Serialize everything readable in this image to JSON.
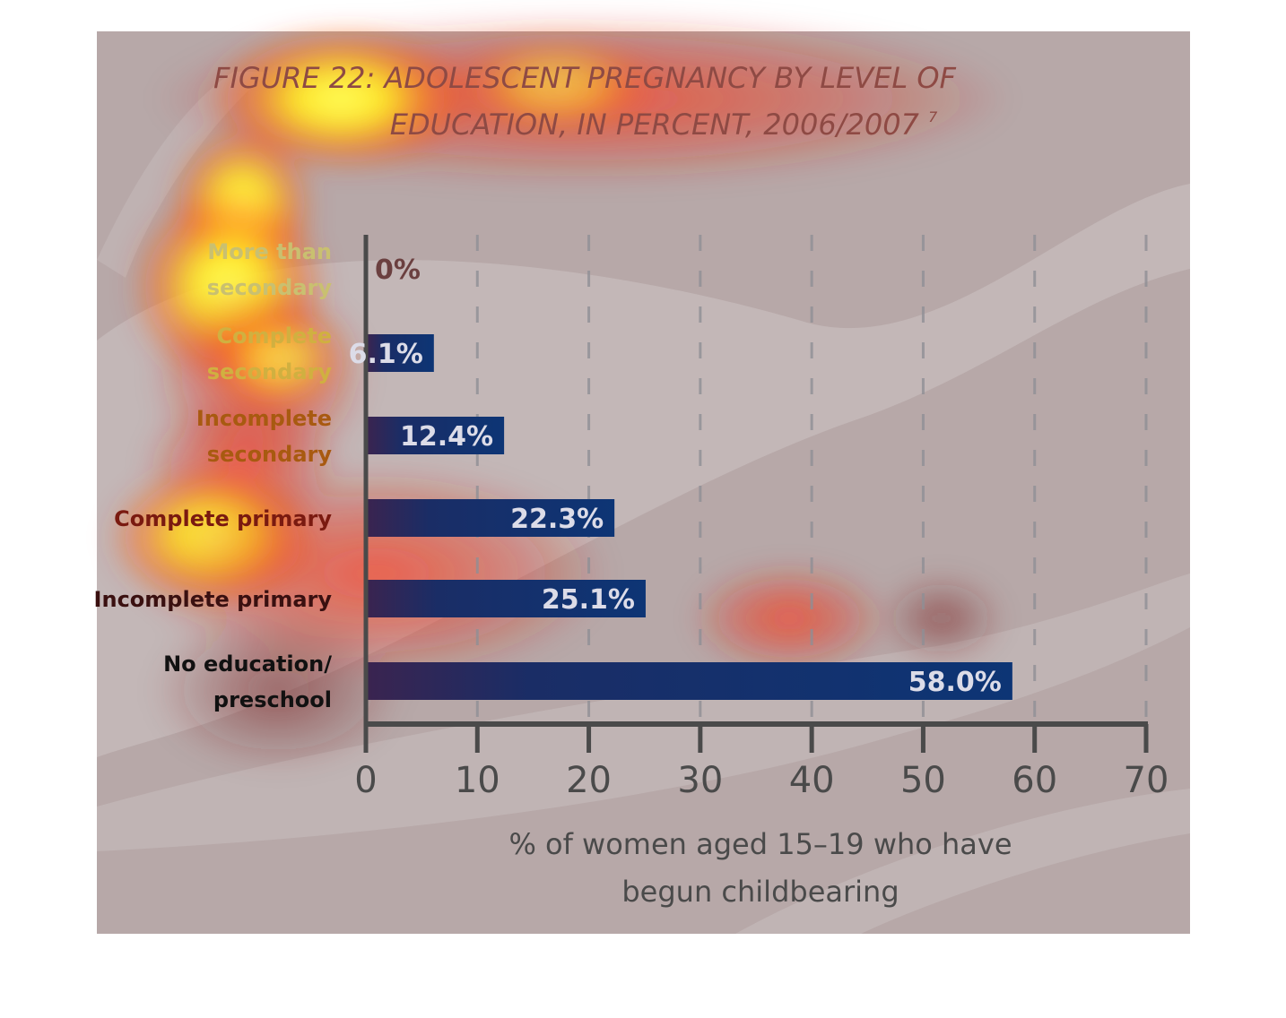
{
  "chart_data": {
    "type": "bar",
    "orientation": "horizontal",
    "title_lines": [
      "FIGURE 22: ADOLESCENT PREGNANCY BY LEVEL OF",
      "EDUCATION, IN PERCENT, 2006/2007"
    ],
    "title_superscript": "7",
    "categories": [
      [
        "More than",
        "secondary"
      ],
      [
        "Complete",
        "secondary"
      ],
      [
        "Incomplete",
        "secondary"
      ],
      [
        "Complete primary"
      ],
      [
        "Incomplete primary"
      ],
      [
        "No education/",
        "preschool"
      ]
    ],
    "values": [
      0,
      6.1,
      12.4,
      22.3,
      25.1,
      58.0
    ],
    "value_labels": [
      "0%",
      "6.1%",
      "12.4%",
      "22.3%",
      "25.1%",
      "58.0%"
    ],
    "xlim": [
      0,
      70
    ],
    "xticks": [
      0,
      10,
      20,
      30,
      40,
      50,
      60,
      70
    ],
    "xlabel_lines": [
      "% of women aged 15–19 who have",
      "begun childbearing"
    ],
    "grid": "vertical dashed",
    "colors": {
      "bar": "#12356f",
      "panel": "#b7a8a8",
      "title": "#8e4a44",
      "axis": "#4a4a4a"
    }
  }
}
